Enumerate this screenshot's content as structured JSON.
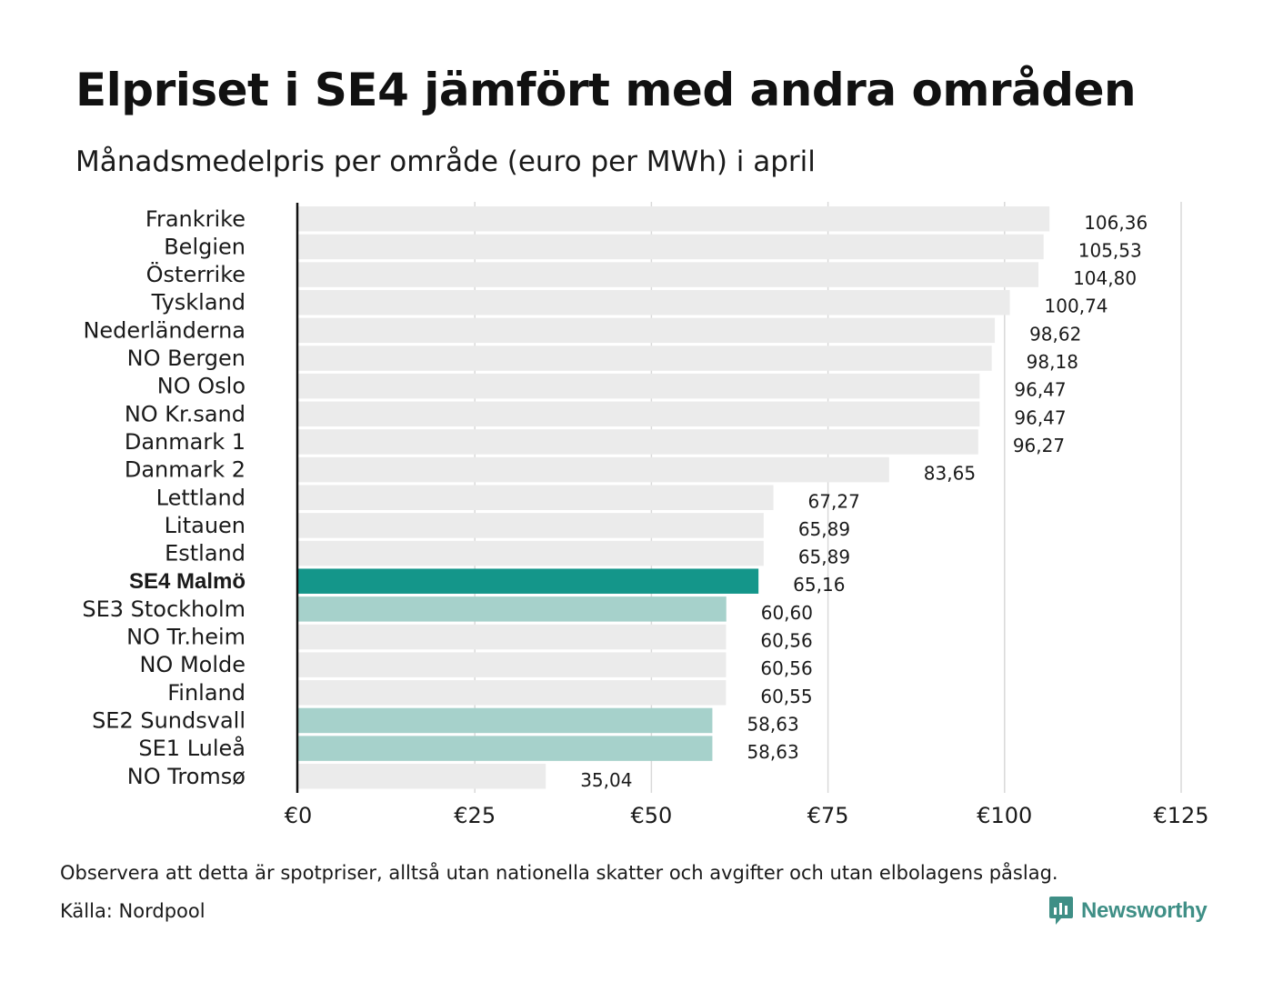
{
  "title": "Elpriset i SE4 jämfört med andra områden",
  "subtitle": "Månadsmedelpris per område (euro per MWh) i april",
  "note": "Observera att detta är spotpriser, alltså utan nationella skatter och avgifter och utan elbolagens påslag.",
  "source": "Källa: Nordpool",
  "brand": {
    "name": "Newsworthy",
    "icon": "newsworthy-logo-icon",
    "color": "#3f8f86"
  },
  "colors": {
    "default_bar": "#ebebeb",
    "highlight_bar": "#14968a",
    "sweden_bar": "#a6d1cb",
    "gridline": "#d9d9d9",
    "axis": "#111111"
  },
  "chart_data": {
    "type": "bar",
    "orientation": "horizontal",
    "title": "Elpriset i SE4 jämfört med andra områden",
    "subtitle": "Månadsmedelpris per område (euro per MWh) i april",
    "xlim": [
      0,
      125
    ],
    "x_ticks": [
      0,
      25,
      50,
      75,
      100,
      125
    ],
    "x_tick_labels": [
      "€0",
      "€25",
      "€50",
      "€75",
      "€100",
      "€125"
    ],
    "grid": "vertical",
    "categories": [
      "Frankrike",
      "Belgien",
      "Österrike",
      "Tyskland",
      "Nederländerna",
      "NO Bergen",
      "NO Oslo",
      "NO Kr.sand",
      "Danmark 1",
      "Danmark 2",
      "Lettland",
      "Litauen",
      "Estland",
      "SE4 Malmö",
      "SE3 Stockholm",
      "NO Tr.heim",
      "NO Molde",
      "Finland",
      "SE2 Sundsvall",
      "SE1 Luleå",
      "NO Tromsø"
    ],
    "values": [
      106.36,
      105.53,
      104.8,
      100.74,
      98.62,
      98.18,
      96.47,
      96.47,
      96.27,
      83.65,
      67.27,
      65.89,
      65.89,
      65.16,
      60.6,
      60.56,
      60.56,
      60.55,
      58.63,
      58.63,
      35.04
    ],
    "value_labels": [
      "106,36",
      "105,53",
      "104,80",
      "100,74",
      "98,62",
      "98,18",
      "96,47",
      "96,47",
      "96,27",
      "83,65",
      "67,27",
      "65,89",
      "65,89",
      "65,16",
      "60,60",
      "60,56",
      "60,56",
      "60,55",
      "58,63",
      "58,63",
      "35,04"
    ],
    "highlight": [
      "default",
      "default",
      "default",
      "default",
      "default",
      "default",
      "default",
      "default",
      "default",
      "default",
      "default",
      "default",
      "default",
      "highlight",
      "sweden",
      "default",
      "default",
      "default",
      "sweden",
      "sweden",
      "default"
    ]
  }
}
